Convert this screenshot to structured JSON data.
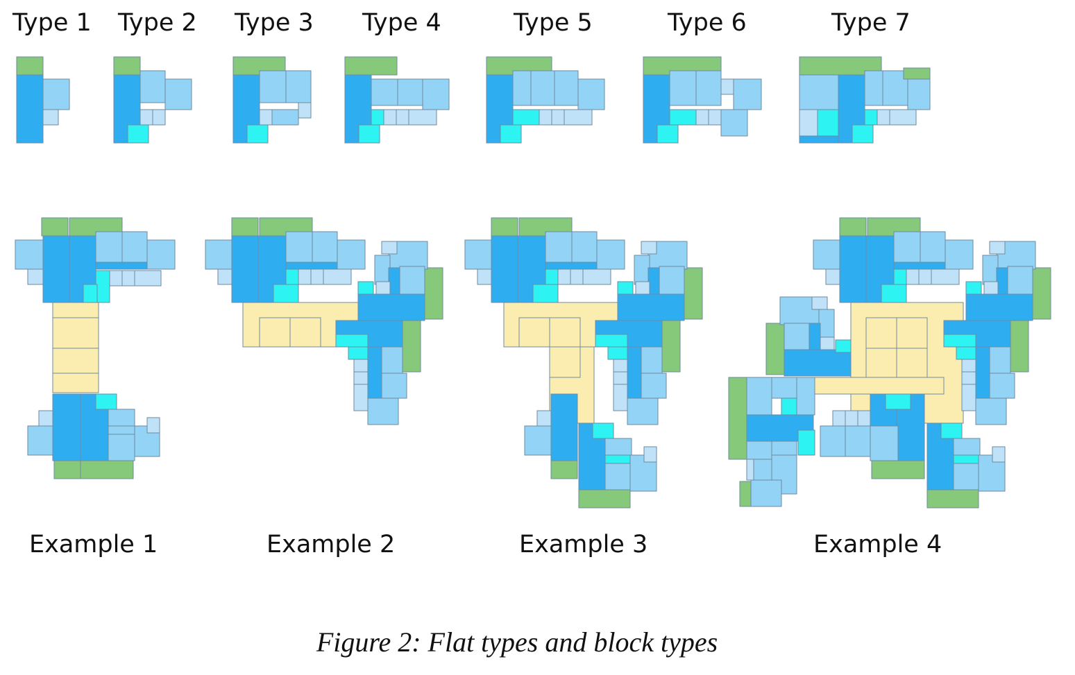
{
  "colors": {
    "green": "#86c97a",
    "blue": "#2eaef0",
    "lightblue": "#92d3f6",
    "paleblue": "#bfe2f8",
    "cyan": "#2ef3f3",
    "yellow": "#fbedb0",
    "outline": "#6f8aa0"
  },
  "type_labels": [
    "Type 1",
    "Type 2",
    "Type 3",
    "Type 4",
    "Type 5",
    "Type 6",
    "Type 7"
  ],
  "example_labels": [
    "Example 1",
    "Example 2",
    "Example 3",
    "Example 4"
  ],
  "caption": "Figure 2: Flat types and block types"
}
